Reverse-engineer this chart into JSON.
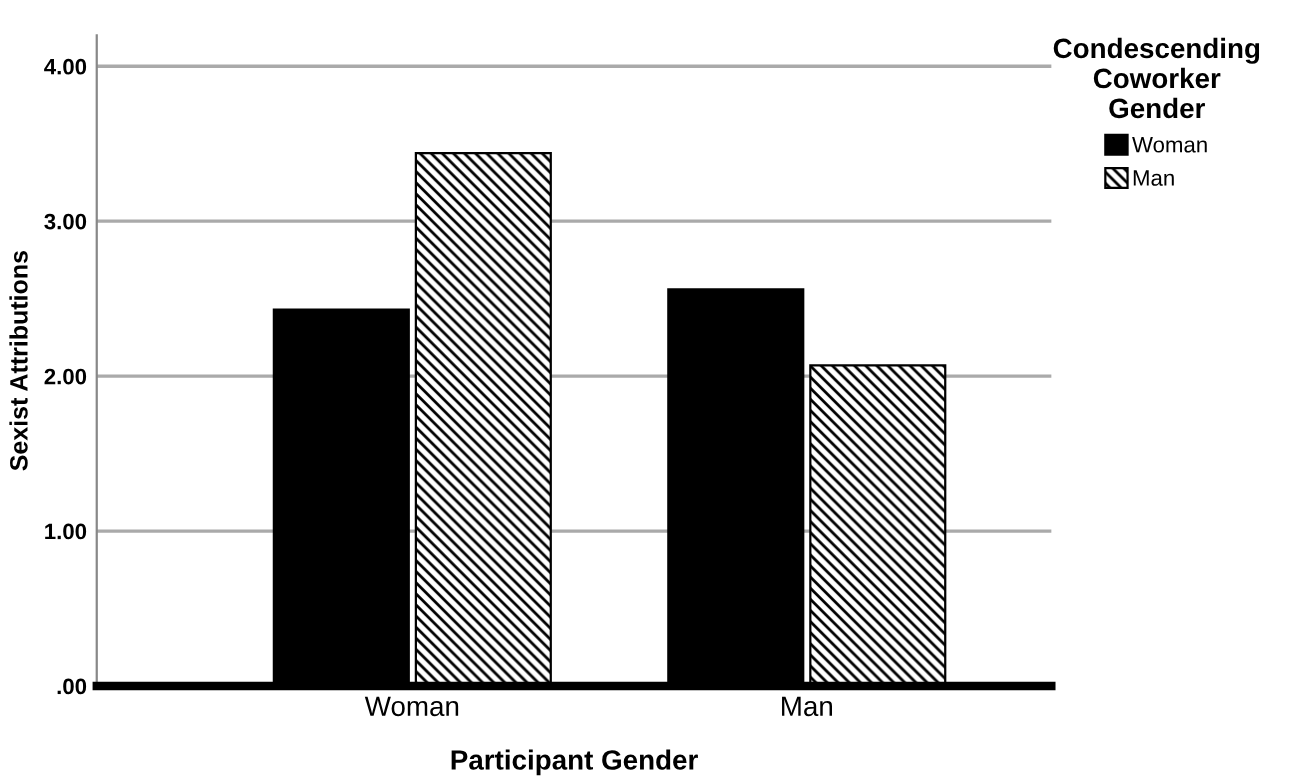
{
  "chart_data": {
    "type": "bar",
    "xlabel": "Participant Gender",
    "ylabel": "Sexist Attributions",
    "legend_title": "Condescending\nCoworker\nGender",
    "categories": [
      "Woman",
      "Man"
    ],
    "series": [
      {
        "name": "Woman",
        "color": "#000000",
        "values": [
          2.43,
          2.56
        ]
      },
      {
        "name": "Man",
        "color": "#000000",
        "values": [
          3.44,
          2.07
        ]
      }
    ],
    "ylim": [
      0,
      4.2
    ],
    "yticks": [
      {
        "value": 0,
        "label": ".00"
      },
      {
        "value": 1,
        "label": "1.00"
      },
      {
        "value": 2,
        "label": "2.00"
      },
      {
        "value": 3,
        "label": "3.00"
      },
      {
        "value": 4,
        "label": "4.00"
      }
    ],
    "grid": "y",
    "legend": "top right"
  }
}
